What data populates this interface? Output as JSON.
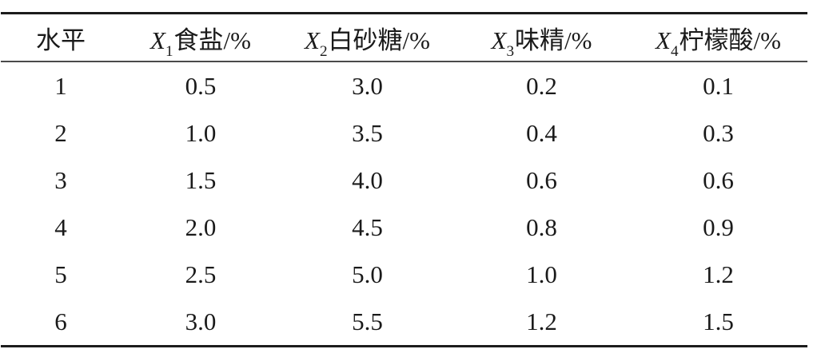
{
  "page": {
    "background": "#ffffff",
    "text_color": "#1a1a1a",
    "rule_color": "#1c1c1c"
  },
  "table": {
    "columns": [
      {
        "id": "level",
        "italic": "",
        "sub": "",
        "text": "水平"
      },
      {
        "id": "salt",
        "italic": "X",
        "sub": "1",
        "text": "食盐/%"
      },
      {
        "id": "white-sugar",
        "italic": "X",
        "sub": "2",
        "text": "白砂糖/%"
      },
      {
        "id": "msg",
        "italic": "X",
        "sub": "3",
        "text": "味精/%"
      },
      {
        "id": "citric-acid",
        "italic": "X",
        "sub": "4",
        "text": "柠檬酸/%"
      }
    ],
    "rows": [
      [
        "1",
        "0.5",
        "3.0",
        "0.2",
        "0.1"
      ],
      [
        "2",
        "1.0",
        "3.5",
        "0.4",
        "0.3"
      ],
      [
        "3",
        "1.5",
        "4.0",
        "0.6",
        "0.6"
      ],
      [
        "4",
        "2.0",
        "4.5",
        "0.8",
        "0.9"
      ],
      [
        "5",
        "2.5",
        "5.0",
        "1.0",
        "1.2"
      ],
      [
        "6",
        "3.0",
        "5.5",
        "1.2",
        "1.5"
      ]
    ]
  },
  "chart_data": {
    "type": "table",
    "title": "",
    "columns": [
      "水平",
      "X1食盐/%",
      "X2白砂糖/%",
      "X3味精/%",
      "X4柠檬酸/%"
    ],
    "rows": [
      [
        1,
        0.5,
        3.0,
        0.2,
        0.1
      ],
      [
        2,
        1.0,
        3.5,
        0.4,
        0.3
      ],
      [
        3,
        1.5,
        4.0,
        0.6,
        0.6
      ],
      [
        4,
        2.0,
        4.5,
        0.8,
        0.9
      ],
      [
        5,
        2.5,
        5.0,
        1.0,
        1.2
      ],
      [
        6,
        3.0,
        5.5,
        1.2,
        1.5
      ]
    ]
  }
}
